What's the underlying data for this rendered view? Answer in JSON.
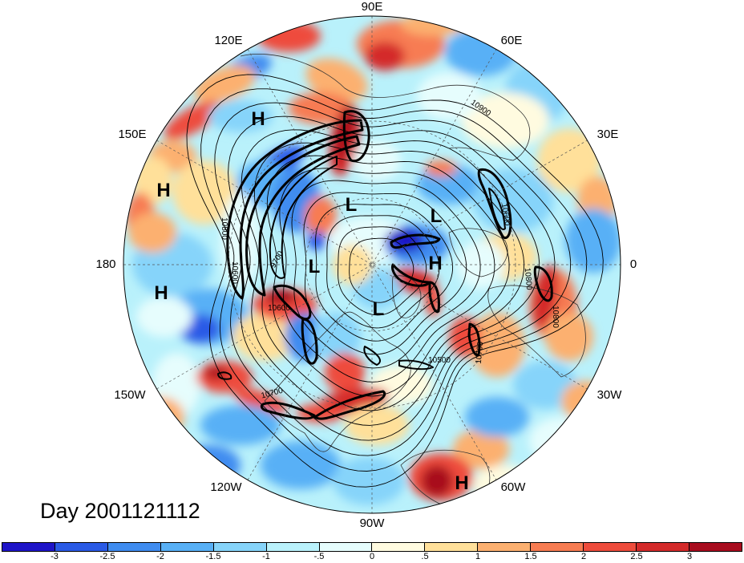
{
  "title": "Day 2001121112",
  "map": {
    "longitude_labels": {
      "lon_90e": "90E",
      "lon_60e": "60E",
      "lon_30e": "30E",
      "lon_0": "0",
      "lon_30w": "30W",
      "lon_60w": "60W",
      "lon_90w": "90W",
      "lon_120w": "120W",
      "lon_150w": "150W",
      "lon_180": "180",
      "lon_150e": "150E",
      "lon_120e": "120E"
    },
    "pressure_centers": [
      "H",
      "H",
      "H",
      "L",
      "L",
      "H",
      "L",
      "L",
      "H"
    ],
    "contour_labels": [
      "10900",
      "10800",
      "10600",
      "9700",
      "10600",
      "10500",
      "10700",
      "10600",
      "10800",
      "10800",
      "10700"
    ]
  },
  "colorbar": {
    "colors": [
      "#1e14c8",
      "#2a5ae6",
      "#3f8cf0",
      "#58b0f6",
      "#86d4fa",
      "#b9f1fb",
      "#e6fdfd",
      "#fffbe0",
      "#ffe09a",
      "#fcb070",
      "#f77c52",
      "#ee4c3c",
      "#d42a2a",
      "#a80c1e"
    ],
    "labels": [
      "-3",
      "-2.5",
      "-2",
      "-1.5",
      "-1",
      "-.5",
      "0",
      ".5",
      "1",
      "1.5",
      "2",
      "2.5",
      "3"
    ]
  }
}
